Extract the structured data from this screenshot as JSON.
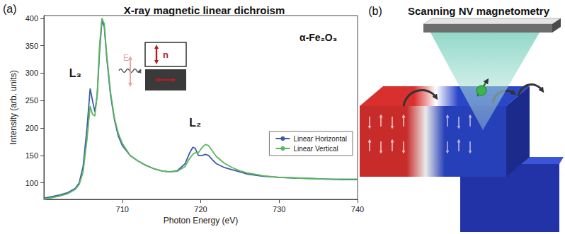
{
  "chart_data": {
    "type": "line",
    "panel_label": "(a)",
    "title": "X-ray magnetic linear dichroism",
    "xlabel": "Photon Energy (eV)",
    "ylabel": "Intensity (arb. units)",
    "x": [
      700,
      702,
      703,
      704,
      704.5,
      705,
      705.5,
      705.9,
      706.2,
      706.5,
      706.8,
      707.1,
      707.4,
      707.7,
      708,
      708.5,
      709,
      709.5,
      710,
      711,
      712,
      713,
      714,
      715,
      716,
      717,
      718,
      718.6,
      719,
      719.3,
      719.7,
      720.2,
      720.6,
      721,
      721.5,
      722,
      723,
      724,
      725,
      726,
      728,
      730,
      732,
      734,
      736,
      738,
      740
    ],
    "series": [
      {
        "name": "Linear Horizontal",
        "color": "#3d5ba9",
        "values": [
          72,
          78,
          82,
          90,
          100,
          130,
          200,
          272,
          250,
          230,
          260,
          340,
          395,
          385,
          330,
          260,
          215,
          185,
          168,
          150,
          140,
          132,
          126,
          122,
          120,
          122,
          135,
          155,
          165,
          163,
          150,
          150,
          152,
          150,
          142,
          135,
          128,
          124,
          120,
          116,
          112,
          110,
          109,
          108,
          107,
          106,
          106
        ]
      },
      {
        "name": "Linear Vertical",
        "color": "#5cb85c",
        "values": [
          70,
          76,
          80,
          88,
          97,
          120,
          180,
          240,
          225,
          222,
          262,
          350,
          400,
          390,
          335,
          265,
          218,
          190,
          172,
          150,
          140,
          132,
          126,
          122,
          120,
          121,
          130,
          145,
          152,
          155,
          155,
          165,
          170,
          168,
          158,
          148,
          136,
          128,
          122,
          118,
          113,
          110,
          109,
          108,
          107,
          107,
          107
        ]
      }
    ],
    "xlim": [
      700,
      740
    ],
    "xticks": [
      710,
      720,
      730,
      740
    ],
    "ylim": [
      70,
      405
    ],
    "yticks": [
      100,
      150,
      200,
      250,
      300,
      350,
      400
    ],
    "grid": false,
    "legend": "bottom-right",
    "annotations": [
      {
        "text": "L₃",
        "x": 704,
        "y": 300
      },
      {
        "text": "L₂",
        "x": 719.3,
        "y": 210
      },
      {
        "text": "α-Fe₂O₃",
        "x": 735,
        "y": 365
      }
    ],
    "inset": {
      "field_label": "E",
      "order_label": "n"
    }
  },
  "panel_b": {
    "label": "(b)",
    "title": "Scanning NV magnetometry"
  }
}
